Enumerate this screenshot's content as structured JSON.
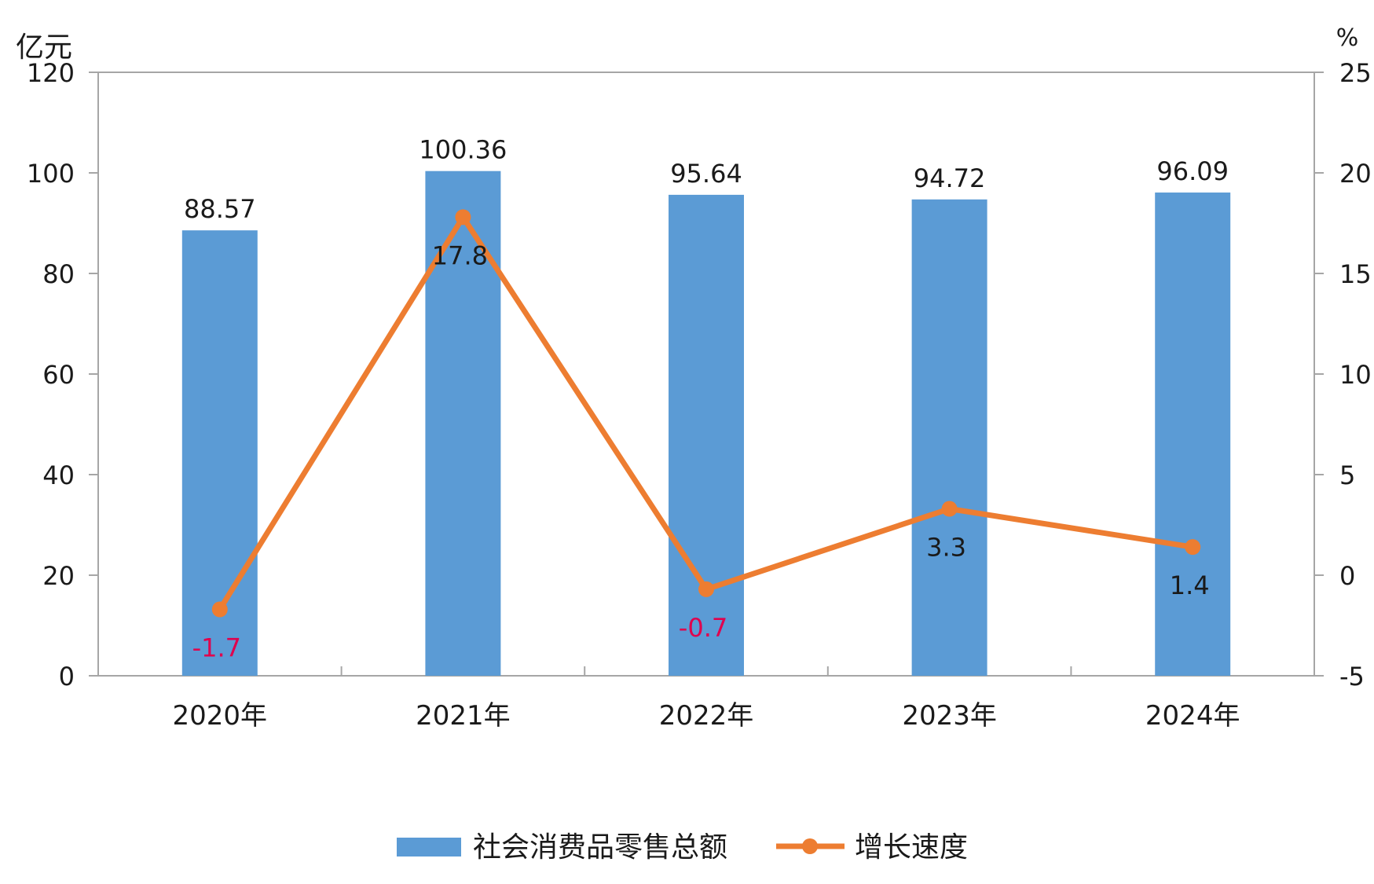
{
  "chart_data": {
    "type": "bar",
    "categories": [
      "2020年",
      "2021年",
      "2022年",
      "2023年",
      "2024年"
    ],
    "series": [
      {
        "name": "社会消费品零售总额",
        "type": "bar",
        "axis": "left",
        "values": [
          88.57,
          100.36,
          95.64,
          94.72,
          96.09
        ],
        "labels": [
          "88.57",
          "100.36",
          "95.64",
          "94.72",
          "96.09"
        ],
        "color": "#5b9bd5"
      },
      {
        "name": "增长速度",
        "type": "line",
        "axis": "right",
        "values": [
          -1.7,
          17.8,
          -0.7,
          3.3,
          1.4
        ],
        "labels": [
          "-1.7",
          "17.8",
          "-0.7",
          "3.3",
          "1.4"
        ],
        "color": "#ed7d31",
        "negative_label_color": "#e0004d"
      }
    ],
    "y_left": {
      "unit": "亿元",
      "ylim": [
        0,
        120
      ],
      "ticks": [
        "0",
        "20",
        "40",
        "60",
        "80",
        "100",
        "120"
      ]
    },
    "y_right": {
      "unit": "%",
      "ylim": [
        -5,
        25
      ],
      "ticks": [
        "-5",
        "0",
        "5",
        "10",
        "15",
        "20",
        "25"
      ]
    },
    "grid": false,
    "legend_position": "bottom"
  }
}
